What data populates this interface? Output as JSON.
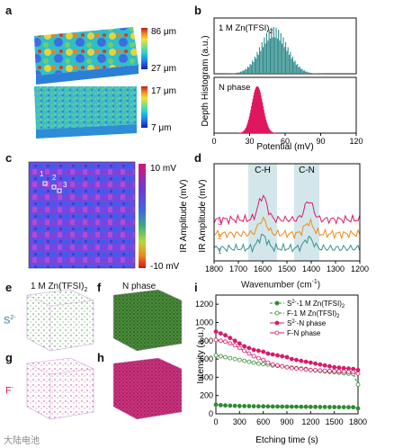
{
  "panels": {
    "a": "a",
    "b": "b",
    "c": "c",
    "d": "d",
    "e": "e",
    "f": "f",
    "g": "g",
    "h": "h",
    "i": "i"
  },
  "panel_a": {
    "top_max": "86 μm",
    "top_min": "27 μm",
    "bottom_max": "17 μm",
    "bottom_min": "7 μm"
  },
  "panel_b": {
    "series_labels": [
      "1 M Zn(TFSI)",
      "N phase"
    ],
    "subscript": "2",
    "ylabel": "Depth Histogram (a.u.)",
    "xlabel": "Potential (mV)",
    "xticks": [
      "0",
      "30",
      "60",
      "90",
      "120"
    ]
  },
  "panel_c": {
    "points": [
      "1",
      "2",
      "3"
    ],
    "cbar_max": "10 mV",
    "cbar_min": "-10 mV",
    "cbar_label": "IR Amplitude (mV)"
  },
  "panel_d": {
    "ylabel": "IR Amplitude (mV)",
    "xlabel": "Wavenumber (cm",
    "xlabel_sup": "-1",
    "xlabel_end": ")",
    "band_labels": [
      "C-H",
      "C-N"
    ],
    "curve_labels": [
      "3",
      "2",
      "1"
    ],
    "xticks": [
      "1800",
      "1700",
      "1600",
      "1500",
      "1400",
      "1300",
      "1200"
    ]
  },
  "panel_efgh": {
    "col1_title": "1 M Zn(TFSI)",
    "col1_sub": "2",
    "col2_title": "N phase",
    "row1_ion": "S",
    "row1_sup": "2-",
    "row2_ion": "F",
    "row2_sup": "-"
  },
  "panel_i": {
    "ylabel": "Intensity (a.u.)",
    "xlabel": "Etching time (s)",
    "yticks": [
      "0",
      "200",
      "400",
      "600",
      "800",
      "1000",
      "1200"
    ],
    "xticks": [
      "0",
      "300",
      "600",
      "900",
      "1200",
      "1500",
      "1800"
    ],
    "legend": [
      {
        "ion": "S",
        "sup": "2-",
        "rest": "-1 M Zn(TFSI)",
        "sub": "2"
      },
      {
        "ion": "F",
        "sup": "",
        "rest": "-1 M Zn(TFSI)",
        "sub": "2"
      },
      {
        "ion": "S",
        "sup": "2-",
        "rest": "-N phase",
        "sub": ""
      },
      {
        "ion": "F",
        "sup": "",
        "rest": "-N phase",
        "sub": ""
      }
    ]
  },
  "watermark": "大陆电池",
  "chart_data": [
    {
      "type": "line",
      "panel": "i",
      "xlabel": "Etching time (s)",
      "ylabel": "Intensity (a.u.)",
      "xlim": [
        0,
        1800
      ],
      "ylim": [
        0,
        1300
      ],
      "x": [
        0,
        60,
        120,
        180,
        240,
        300,
        360,
        420,
        480,
        540,
        600,
        660,
        720,
        780,
        840,
        900,
        960,
        1020,
        1080,
        1140,
        1200,
        1260,
        1320,
        1380,
        1440,
        1500,
        1560,
        1620,
        1680,
        1740,
        1800
      ],
      "series": [
        {
          "name": "S2- -1 M Zn(TFSI)2",
          "color": "#2e8b2e",
          "values": [
            100,
            95,
            92,
            90,
            88,
            86,
            85,
            84,
            83,
            82,
            82,
            81,
            80,
            80,
            79,
            79,
            78,
            78,
            77,
            77,
            76,
            76,
            75,
            75,
            74,
            74,
            73,
            73,
            72,
            72,
            60
          ]
        },
        {
          "name": "F- -1 M Zn(TFSI)2",
          "color": "#2e8b2e",
          "values": [
            640,
            630,
            620,
            610,
            600,
            590,
            580,
            570,
            560,
            550,
            545,
            540,
            530,
            525,
            520,
            510,
            505,
            500,
            495,
            490,
            480,
            475,
            470,
            465,
            460,
            455,
            450,
            445,
            440,
            435,
            320
          ]
        },
        {
          "name": "S2- -N phase",
          "color": "#d81b6a",
          "values": [
            900,
            880,
            860,
            830,
            800,
            770,
            740,
            720,
            700,
            690,
            680,
            660,
            650,
            640,
            630,
            620,
            600,
            590,
            580,
            570,
            560,
            550,
            540,
            530,
            520,
            510,
            505,
            500,
            495,
            490,
            480
          ]
        },
        {
          "name": "F- -N phase",
          "color": "#d81b6a",
          "values": [
            810,
            800,
            790,
            770,
            750,
            720,
            690,
            660,
            630,
            610,
            590,
            560,
            540,
            530,
            520,
            510,
            500,
            495,
            490,
            485,
            480,
            478,
            475,
            472,
            470,
            468,
            465,
            462,
            460,
            458,
            440
          ]
        }
      ]
    }
  ]
}
